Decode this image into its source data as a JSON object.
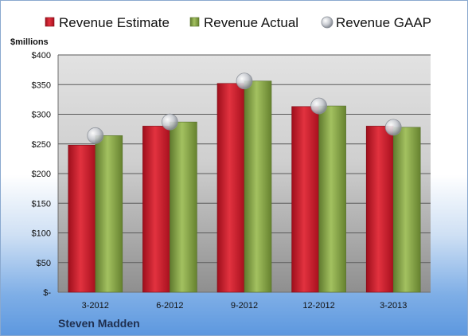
{
  "chart_data": {
    "type": "bar",
    "categories": [
      "3-2012",
      "6-2012",
      "9-2012",
      "12-2012",
      "3-2013"
    ],
    "series": [
      {
        "name": "Revenue Estimate",
        "values": [
          248,
          280,
          352,
          313,
          280
        ],
        "color": "#d0182a"
      },
      {
        "name": "Revenue Actual",
        "values": [
          264,
          287,
          356,
          314,
          278
        ],
        "color": "#8aaa4a"
      },
      {
        "name": "Revenue GAAP",
        "values": [
          264,
          287,
          356,
          314,
          278
        ],
        "color": "#b8bcc4",
        "marker": "circle"
      }
    ],
    "ylabel": "$millions",
    "ylim": [
      0,
      400
    ],
    "yticks": [
      {
        "value": 0,
        "label": "$-"
      },
      {
        "value": 50,
        "label": "$50"
      },
      {
        "value": 100,
        "label": "$100"
      },
      {
        "value": 150,
        "label": "$150"
      },
      {
        "value": 200,
        "label": "$200"
      },
      {
        "value": 250,
        "label": "$250"
      },
      {
        "value": 300,
        "label": "$300"
      },
      {
        "value": 350,
        "label": "$350"
      },
      {
        "value": 400,
        "label": "$400"
      }
    ],
    "grid": true,
    "legend": "top"
  },
  "footer": {
    "company": "Steven Madden"
  }
}
